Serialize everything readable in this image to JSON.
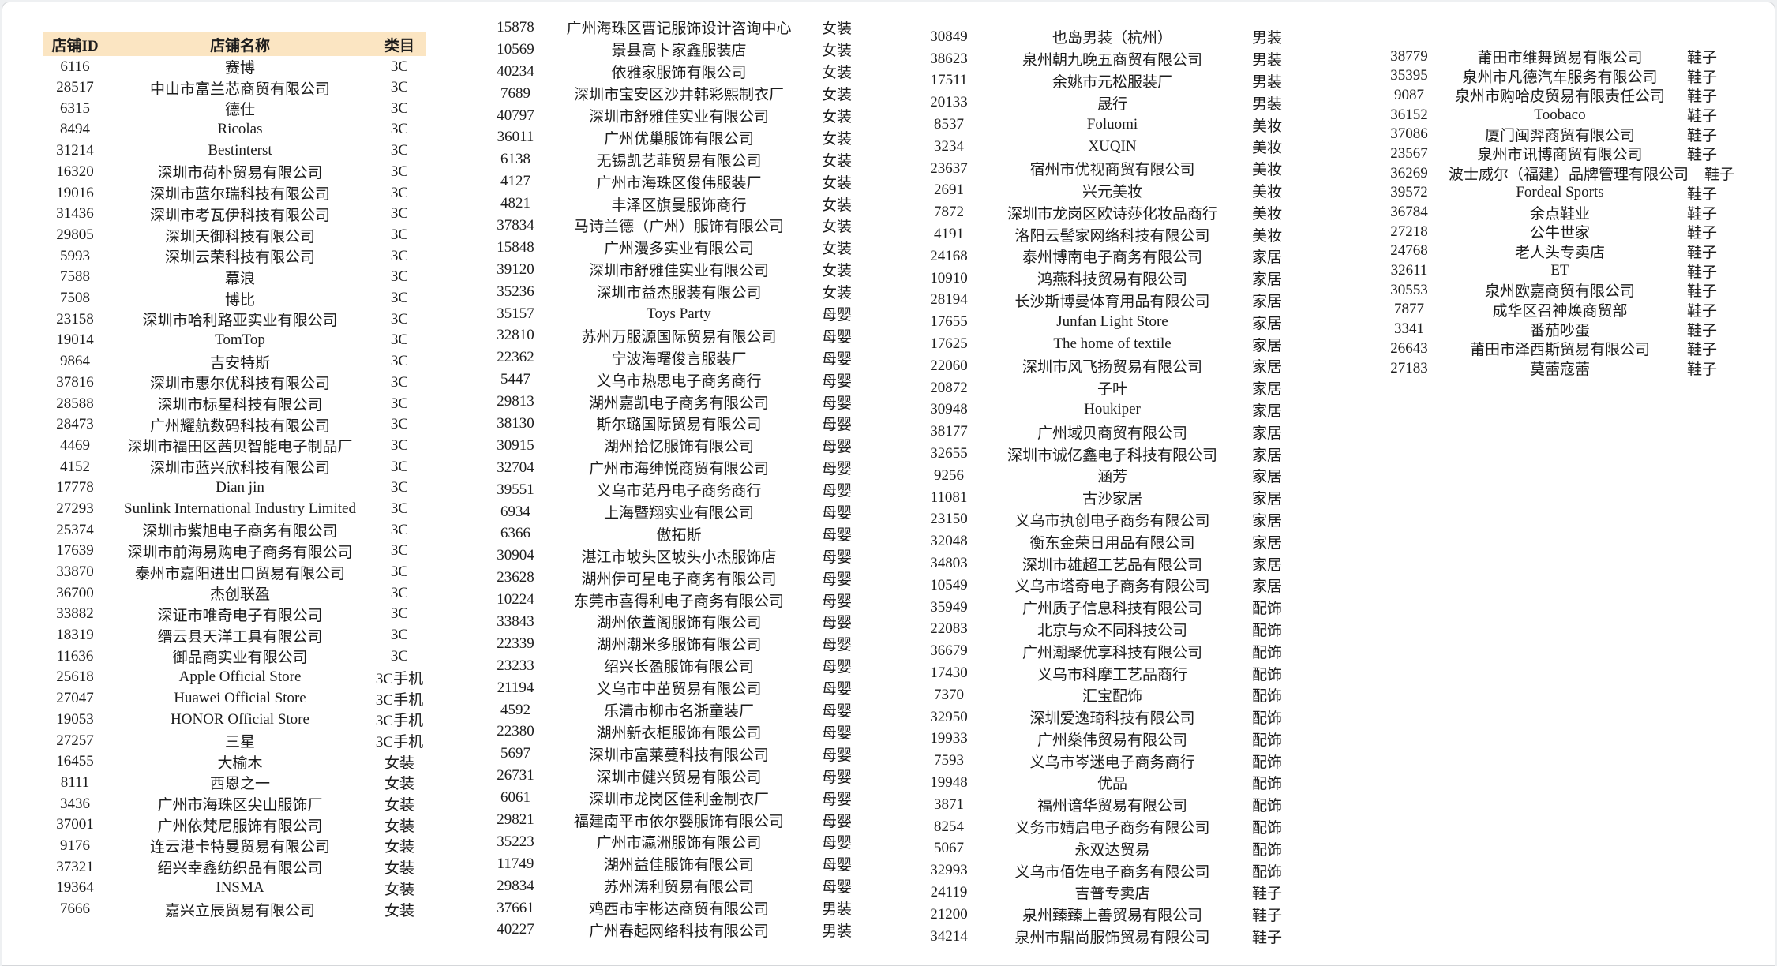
{
  "page": {
    "background": "#ffffff",
    "border_color": "#d5d7da",
    "header_bg": "#fbe5c2"
  },
  "table": {
    "headers": {
      "id": "店铺ID",
      "name": "店铺名称",
      "category": "类目"
    },
    "columns": [
      {
        "show_header": true,
        "rows": [
          [
            "6116",
            "赛博",
            "3C"
          ],
          [
            "28517",
            "中山市富兰芯商贸有限公司",
            "3C"
          ],
          [
            "6315",
            "德仕",
            "3C"
          ],
          [
            "8494",
            "Ricolas",
            "3C"
          ],
          [
            "31214",
            "Bestinterst",
            "3C"
          ],
          [
            "16320",
            "深圳市荷朴贸易有限公司",
            "3C"
          ],
          [
            "19016",
            "深圳市蓝尔瑞科技有限公司",
            "3C"
          ],
          [
            "31436",
            "深圳市考瓦伊科技有限公司",
            "3C"
          ],
          [
            "29805",
            "深圳天御科技有限公司",
            "3C"
          ],
          [
            "5993",
            "深圳云荣科技有限公司",
            "3C"
          ],
          [
            "7588",
            "幕浪",
            "3C"
          ],
          [
            "7508",
            "博比",
            "3C"
          ],
          [
            "23158",
            "深圳市哈利路亚实业有限公司",
            "3C"
          ],
          [
            "19014",
            "TomTop",
            "3C"
          ],
          [
            "9864",
            "吉安特斯",
            "3C"
          ],
          [
            "37816",
            "深圳市惠尔优科技有限公司",
            "3C"
          ],
          [
            "28588",
            "深圳市标星科技有限公司",
            "3C"
          ],
          [
            "28473",
            "广州耀航数码科技有限公司",
            "3C"
          ],
          [
            "4469",
            "深圳市福田区茜贝智能电子制品厂",
            "3C"
          ],
          [
            "4152",
            "深圳市蓝兴欣科技有限公司",
            "3C"
          ],
          [
            "17778",
            "Dian jin",
            "3C"
          ],
          [
            "27293",
            "Sunlink International Industry Limited",
            "3C"
          ],
          [
            "25374",
            "深圳市紫旭电子商务有限公司",
            "3C"
          ],
          [
            "17639",
            "深圳市前海易购电子商务有限公司",
            "3C"
          ],
          [
            "33870",
            "泰州市嘉阳进出口贸易有限公司",
            "3C"
          ],
          [
            "36700",
            "杰创联盈",
            "3C"
          ],
          [
            "33882",
            "深证市唯奇电子有限公司",
            "3C"
          ],
          [
            "18319",
            "缙云县天洋工具有限公司",
            "3C"
          ],
          [
            "11636",
            "御品商实业有限公司",
            "3C"
          ],
          [
            "25618",
            "Apple Official Store",
            "3C手机"
          ],
          [
            "27047",
            "Huawei Official Store",
            "3C手机"
          ],
          [
            "19053",
            "HONOR Official Store",
            "3C手机"
          ],
          [
            "27257",
            "三星",
            "3C手机"
          ],
          [
            "16455",
            "大榆木",
            "女装"
          ],
          [
            "8111",
            "西恩之一",
            "女装"
          ],
          [
            "3436",
            "广州市海珠区尖山服饰厂",
            "女装"
          ],
          [
            "37001",
            "广州依梵尼服饰有限公司",
            "女装"
          ],
          [
            "9176",
            "连云港卡特曼贸易有限公司",
            "女装"
          ],
          [
            "37321",
            "绍兴幸鑫纺织品有限公司",
            "女装"
          ],
          [
            "19364",
            "INSMA",
            "女装"
          ],
          [
            "7666",
            "嘉兴立辰贸易有限公司",
            "女装"
          ]
        ]
      },
      {
        "show_header": false,
        "rows": [
          [
            "15878",
            "广州海珠区曹记服饰设计咨询中心",
            "女装"
          ],
          [
            "10569",
            "景县高卜家鑫服装店",
            "女装"
          ],
          [
            "40234",
            "依雅家服饰有限公司",
            "女装"
          ],
          [
            "7689",
            "深圳市宝安区沙井韩彩熙制衣厂",
            "女装"
          ],
          [
            "40797",
            "深圳市舒雅佳实业有限公司",
            "女装"
          ],
          [
            "36011",
            "广州优巢服饰有限公司",
            "女装"
          ],
          [
            "6138",
            "无锡凯艺菲贸易有限公司",
            "女装"
          ],
          [
            "4127",
            "广州市海珠区俊伟服装厂",
            "女装"
          ],
          [
            "4821",
            "丰泽区旗曼服饰商行",
            "女装"
          ],
          [
            "37834",
            "马诗兰德（广州）服饰有限公司",
            "女装"
          ],
          [
            "15848",
            "广州漫多实业有限公司",
            "女装"
          ],
          [
            "39120",
            "深圳市舒雅佳实业有限公司",
            "女装"
          ],
          [
            "35236",
            "深圳市益杰服装有限公司",
            "女装"
          ],
          [
            "35157",
            "Toys Party",
            "母婴"
          ],
          [
            "32810",
            "苏州万服源国际贸易有限公司",
            "母婴"
          ],
          [
            "22362",
            "宁波海曙俊言服装厂",
            "母婴"
          ],
          [
            "5447",
            "义乌市热思电子商务商行",
            "母婴"
          ],
          [
            "29813",
            "湖州嘉凯电子商务有限公司",
            "母婴"
          ],
          [
            "38130",
            "斯尔璐国际贸易有限公司",
            "母婴"
          ],
          [
            "30915",
            "湖州拾忆服饰有限公司",
            "母婴"
          ],
          [
            "32704",
            "广州市海绅悦商贸有限公司",
            "母婴"
          ],
          [
            "39551",
            "义乌市范丹电子商务商行",
            "母婴"
          ],
          [
            "6934",
            "上海暨翔实业有限公司",
            "母婴"
          ],
          [
            "6366",
            "傲拓斯",
            "母婴"
          ],
          [
            "30904",
            "湛江市坡头区坡头小杰服饰店",
            "母婴"
          ],
          [
            "23628",
            "湖州伊可星电子商务有限公司",
            "母婴"
          ],
          [
            "10224",
            "东莞市喜得利电子商务有限公司",
            "母婴"
          ],
          [
            "33843",
            "湖州依萱阁服饰有限公司",
            "母婴"
          ],
          [
            "22339",
            "湖州潮米多服饰有限公司",
            "母婴"
          ],
          [
            "23233",
            "绍兴长盈服饰有限公司",
            "母婴"
          ],
          [
            "21194",
            "义乌市中茁贸易有限公司",
            "母婴"
          ],
          [
            "4592",
            "乐清市柳市名浙童装厂",
            "母婴"
          ],
          [
            "22380",
            "湖州新衣柜服饰有限公司",
            "母婴"
          ],
          [
            "5697",
            "深圳市富莱蔓科技有限公司",
            "母婴"
          ],
          [
            "26731",
            "深圳市健兴贸易有限公司",
            "母婴"
          ],
          [
            "6061",
            "深圳市龙岗区佳利金制衣厂",
            "母婴"
          ],
          [
            "29821",
            "福建南平市依尔婴服饰有限公司",
            "母婴"
          ],
          [
            "35223",
            "广州市瀛洲服饰有限公司",
            "母婴"
          ],
          [
            "11749",
            "湖州益佳服饰有限公司",
            "母婴"
          ],
          [
            "29834",
            "苏州涛利贸易有限公司",
            "母婴"
          ],
          [
            "37661",
            "鸡西市宇彬达商贸有限公司",
            "男装"
          ],
          [
            "40227",
            "广州春起网络科技有限公司",
            "男装"
          ]
        ]
      },
      {
        "show_header": false,
        "rows": [
          [
            "30849",
            "也岛男装（杭州）",
            "男装"
          ],
          [
            "38623",
            "泉州朝九晚五商贸有限公司",
            "男装"
          ],
          [
            "17511",
            "余姚市元松服装厂",
            "男装"
          ],
          [
            "20133",
            "晟行",
            "男装"
          ],
          [
            "8537",
            "Foluomi",
            "美妆"
          ],
          [
            "3234",
            "XUQIN",
            "美妆"
          ],
          [
            "23637",
            "宿州市优视商贸有限公司",
            "美妆"
          ],
          [
            "2691",
            "兴元美妆",
            "美妆"
          ],
          [
            "7872",
            "深圳市龙岗区欧诗莎化妆品商行",
            "美妆"
          ],
          [
            "4191",
            "洛阳云髻家网络科技有限公司",
            "美妆"
          ],
          [
            "24168",
            "泰州博南电子商务有限公司",
            "家居"
          ],
          [
            "10910",
            "鸿燕科技贸易有限公司",
            "家居"
          ],
          [
            "28194",
            "长沙斯博曼体育用品有限公司",
            "家居"
          ],
          [
            "17655",
            "Junfan Light Store",
            "家居"
          ],
          [
            "17625",
            "The home of textile",
            "家居"
          ],
          [
            "22060",
            "深圳市风飞扬贸易有限公司",
            "家居"
          ],
          [
            "20872",
            "子叶",
            "家居"
          ],
          [
            "30948",
            "Houkiper",
            "家居"
          ],
          [
            "38177",
            "广州域贝商贸有限公司",
            "家居"
          ],
          [
            "32655",
            "深圳市诚亿鑫电子科技有限公司",
            "家居"
          ],
          [
            "9256",
            "涵芳",
            "家居"
          ],
          [
            "11081",
            "古沙家居",
            "家居"
          ],
          [
            "23150",
            "义乌市执创电子商务有限公司",
            "家居"
          ],
          [
            "32048",
            "衡东金荣日用品有限公司",
            "家居"
          ],
          [
            "34803",
            "深圳市雄超工艺品有限公司",
            "家居"
          ],
          [
            "10549",
            "义乌市塔奇电子商务有限公司",
            "家居"
          ],
          [
            "35949",
            "广州质子信息科技有限公司",
            "配饰"
          ],
          [
            "22083",
            "北京与众不同科技公司",
            "配饰"
          ],
          [
            "36679",
            "广州潮聚优享科技有限公司",
            "配饰"
          ],
          [
            "17430",
            "义乌市科摩工艺品商行",
            "配饰"
          ],
          [
            "7370",
            "汇宝配饰",
            "配饰"
          ],
          [
            "32950",
            "深圳爱逸琦科技有限公司",
            "配饰"
          ],
          [
            "19933",
            "广州燊伟贸易有限公司",
            "配饰"
          ],
          [
            "7593",
            "义乌市岑迷电子商务商行",
            "配饰"
          ],
          [
            "19948",
            "优品",
            "配饰"
          ],
          [
            "3871",
            "福州谙华贸易有限公司",
            "配饰"
          ],
          [
            "8254",
            "义务市婧启电子商务有限公司",
            "配饰"
          ],
          [
            "5067",
            "永双达贸易",
            "配饰"
          ],
          [
            "32993",
            "义乌市佰佐电子商务有限公司",
            "配饰"
          ],
          [
            "24119",
            "吉普专卖店",
            "鞋子"
          ],
          [
            "21200",
            "泉州臻臻上善贸易有限公司",
            "鞋子"
          ],
          [
            "34214",
            "泉州市鼎尚服饰贸易有限公司",
            "鞋子"
          ]
        ]
      },
      {
        "show_header": false,
        "rows": [
          [
            "38779",
            "莆田市维舞贸易有限公司",
            "鞋子"
          ],
          [
            "35395",
            "泉州市凡德汽车服务有限公司",
            "鞋子"
          ],
          [
            "9087",
            "泉州市购哈皮贸易有限责任公司",
            "鞋子"
          ],
          [
            "36152",
            "Toobaco",
            "鞋子"
          ],
          [
            "37086",
            "厦门闽羿商贸有限公司",
            "鞋子"
          ],
          [
            "23567",
            "泉州市讯博商贸有限公司",
            "鞋子"
          ],
          [
            "36269",
            "波士威尔（福建）品牌管理有限公司",
            "鞋子"
          ],
          [
            "39572",
            "Fordeal Sports",
            "鞋子"
          ],
          [
            "36784",
            "余点鞋业",
            "鞋子"
          ],
          [
            "27218",
            "公牛世家",
            "鞋子"
          ],
          [
            "24768",
            "老人头专卖店",
            "鞋子"
          ],
          [
            "32611",
            "ET",
            "鞋子"
          ],
          [
            "30553",
            "泉州欧嘉商贸有限公司",
            "鞋子"
          ],
          [
            "7877",
            "成华区召神焕商贸部",
            "鞋子"
          ],
          [
            "3341",
            "番茄吵蛋",
            "鞋子"
          ],
          [
            "26643",
            "莆田市泽西斯贸易有限公司",
            "鞋子"
          ],
          [
            "27183",
            "莫蕾寇蕾",
            "鞋子"
          ]
        ]
      }
    ]
  }
}
